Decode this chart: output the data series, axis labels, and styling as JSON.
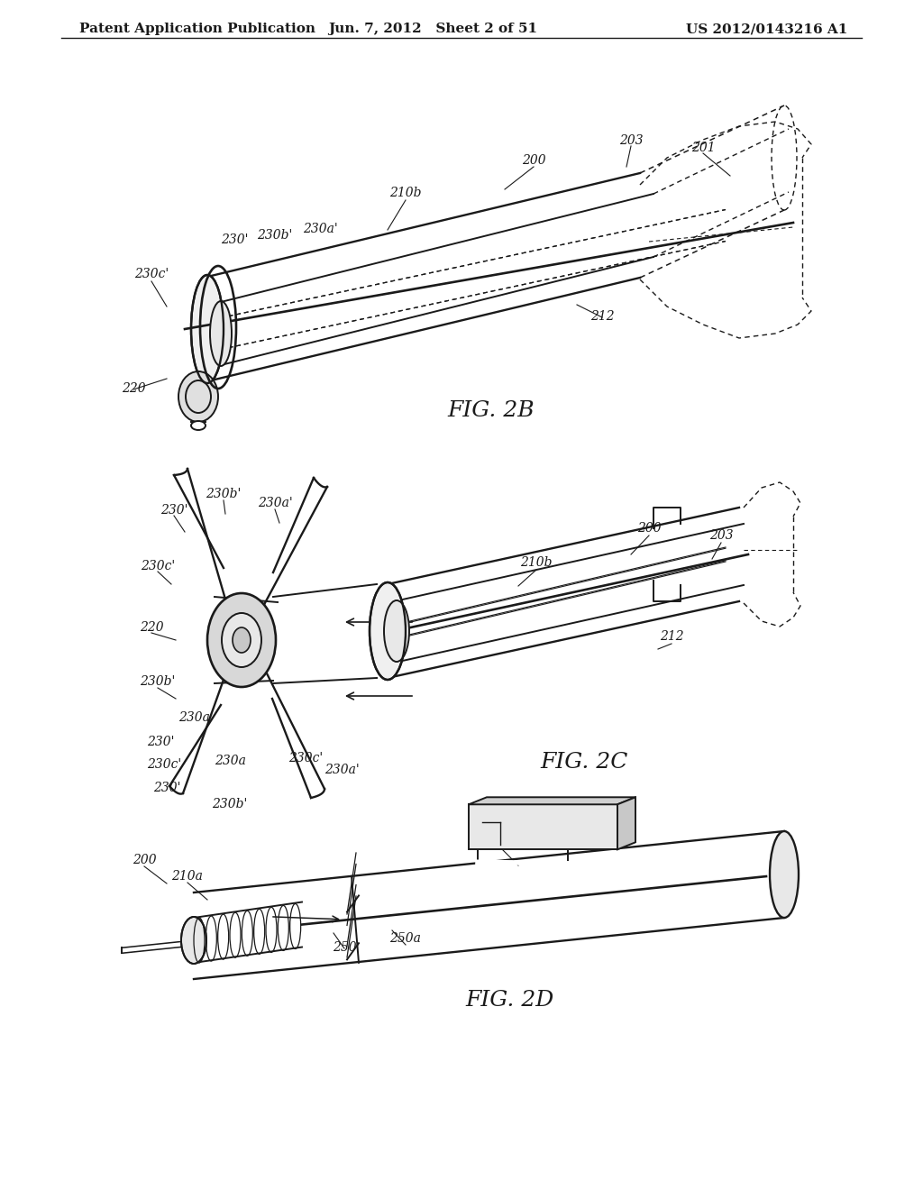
{
  "background_color": "#ffffff",
  "header_left": "Patent Application Publication",
  "header_center": "Jun. 7, 2012   Sheet 2 of 51",
  "header_right": "US 2012/0143216 A1",
  "header_fontsize": 11,
  "fig_label_fontsize": 16,
  "line_color": "#1a1a1a",
  "lw": 1.4,
  "annotation_fontsize": 10
}
